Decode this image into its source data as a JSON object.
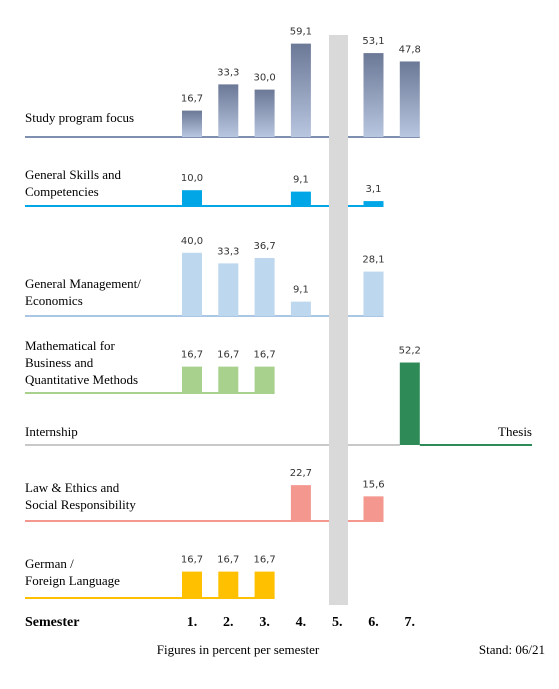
{
  "chart_data": {
    "type": "bar",
    "x_label": "Semester",
    "categories": [
      "1.",
      "2.",
      "3.",
      "4.",
      "5.",
      "6.",
      "7."
    ],
    "series": [
      {
        "name": [
          "Study program focus"
        ],
        "color": "#8593b3",
        "values": [
          16.7,
          33.3,
          30.0,
          59.1,
          null,
          53.1,
          47.8
        ],
        "value_labels": [
          "16,7",
          "33,3",
          "30,0",
          "59,1",
          null,
          "53,1",
          "47,8"
        ]
      },
      {
        "name": [
          "General Skills and",
          "Competencies"
        ],
        "color": "#00a6e6",
        "values": [
          10.0,
          null,
          null,
          9.1,
          null,
          3.1,
          null
        ],
        "value_labels": [
          "10,0",
          null,
          null,
          "9,1",
          null,
          "3,1",
          null
        ]
      },
      {
        "name": [
          "General Management/",
          "Economics"
        ],
        "color": "#bdd7ee",
        "values": [
          40.0,
          33.3,
          36.7,
          9.1,
          null,
          28.1,
          null
        ],
        "value_labels": [
          "40,0",
          "33,3",
          "36,7",
          "9,1",
          null,
          "28,1",
          null
        ]
      },
      {
        "name": [
          "Mathematical for",
          "Business and",
          "Quantitative Methods"
        ],
        "color": "#a9d18e",
        "values": [
          16.7,
          16.7,
          16.7,
          null,
          null,
          null,
          null
        ],
        "value_labels": [
          "16,7",
          "16,7",
          "16,7",
          null,
          null,
          null,
          null
        ]
      },
      {
        "name": [
          "Internship"
        ],
        "color": "#2e8b57",
        "values": [
          null,
          null,
          null,
          null,
          null,
          null,
          52.2
        ],
        "value_labels": [
          null,
          null,
          null,
          null,
          null,
          null,
          "52,2"
        ],
        "annotation": "Thesis"
      },
      {
        "name": [
          "Law & Ethics and",
          "Social Responsibility"
        ],
        "color": "#f4978e",
        "values": [
          null,
          null,
          null,
          22.7,
          null,
          15.6,
          null
        ],
        "value_labels": [
          null,
          null,
          null,
          "22,7",
          null,
          "15,6",
          null
        ]
      },
      {
        "name": [
          "German /",
          "Foreign Language"
        ],
        "color": "#ffc000",
        "values": [
          16.7,
          16.7,
          16.7,
          null,
          null,
          null,
          null
        ],
        "value_labels": [
          "16,7",
          "16,7",
          "16,7",
          null,
          null,
          null,
          null
        ]
      }
    ],
    "note": "Figures in percent per semester",
    "stand": "Stand: 06/21"
  }
}
